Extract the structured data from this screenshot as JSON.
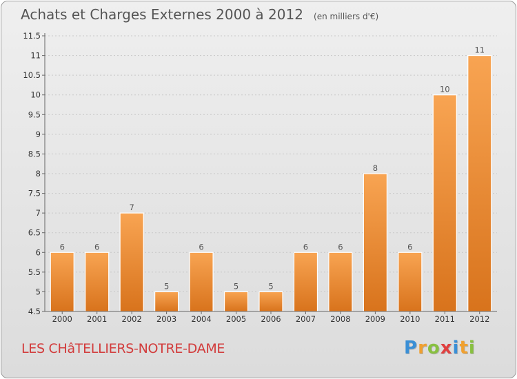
{
  "header": {
    "title": "Achats et Charges Externes 2000 à 2012",
    "unit": "(en milliers d'€)"
  },
  "footer": {
    "commune": "LES CHâTELLIERS-NOTRE-DAME"
  },
  "brand": {
    "text": "Proxiti",
    "letters": [
      {
        "ch": "P",
        "color": "#3a8fd6"
      },
      {
        "ch": "r",
        "color": "#f0a030"
      },
      {
        "ch": "o",
        "color": "#88c040"
      },
      {
        "ch": "x",
        "color": "#e04040"
      },
      {
        "ch": "i",
        "color": "#3a8fd6"
      },
      {
        "ch": "t",
        "color": "#f0a030"
      },
      {
        "ch": "i",
        "color": "#88c040"
      }
    ]
  },
  "colors": {
    "bar_light": "#f8a452",
    "bar_dark": "#d8731c",
    "grid": "#c8c8c8"
  },
  "chart_data": {
    "type": "bar",
    "title": "Achats et Charges Externes 2000 à 2012",
    "subtitle": "(en milliers d'€)",
    "xlabel": "",
    "ylabel": "",
    "categories": [
      "2000",
      "2001",
      "2002",
      "2003",
      "2004",
      "2005",
      "2006",
      "2007",
      "2008",
      "2009",
      "2010",
      "2011",
      "2012"
    ],
    "values": [
      6,
      6,
      7,
      5,
      6,
      5,
      5,
      6,
      6,
      8,
      6,
      10,
      11
    ],
    "labels": [
      "6",
      "6",
      "7",
      "5",
      "6",
      "5",
      "5",
      "6",
      "6",
      "8",
      "6",
      "10",
      "11"
    ],
    "ylim": [
      4.5,
      11.5
    ],
    "yticks": [
      "4.5",
      "5",
      "5.5",
      "6",
      "6.5",
      "7",
      "7.5",
      "8",
      "8.5",
      "9",
      "9.5",
      "10",
      "10.5",
      "11",
      "11.5"
    ],
    "grid": "horizontal dashed"
  }
}
